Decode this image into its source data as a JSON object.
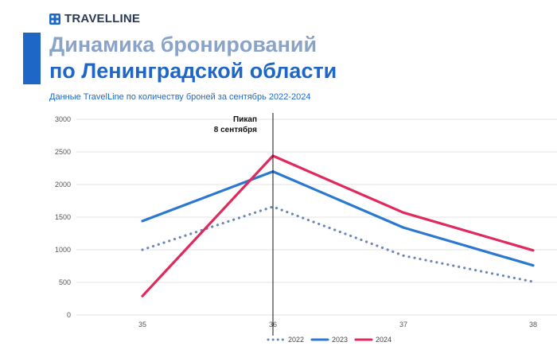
{
  "brand": {
    "name": "TRAVELLINE",
    "logo": "grid-logo-icon"
  },
  "colors": {
    "accent": "#1f67c7",
    "title_light": "#8aa3c9",
    "grid": "#e3e3e3"
  },
  "chart_data": {
    "type": "line",
    "title": [
      "Динамика бронирований",
      "по Ленинградской области"
    ],
    "subtitle": "Данные TravelLine по количеству броней за сентябрь 2022-2024",
    "x": [
      "35",
      "36",
      "37",
      "38"
    ],
    "ylim": [
      0,
      3000
    ],
    "yticks": [
      "0",
      "500",
      "1000",
      "1500",
      "2000",
      "2500",
      "3000"
    ],
    "grid": true,
    "legend_position": "bottom-right",
    "series": [
      {
        "name": "2022",
        "values": [
          1000,
          1660,
          910,
          510
        ],
        "color": "#6a87b8",
        "style": "dotted"
      },
      {
        "name": "2023",
        "values": [
          1440,
          2200,
          1340,
          760
        ],
        "color": "#2a78d0",
        "style": "solid"
      },
      {
        "name": "2024",
        "values": [
          290,
          2440,
          1570,
          990
        ],
        "color": "#e0295c",
        "style": "solid"
      }
    ],
    "annotation": {
      "x": "36",
      "lines": [
        "Пикап",
        "8 сентября"
      ]
    }
  }
}
